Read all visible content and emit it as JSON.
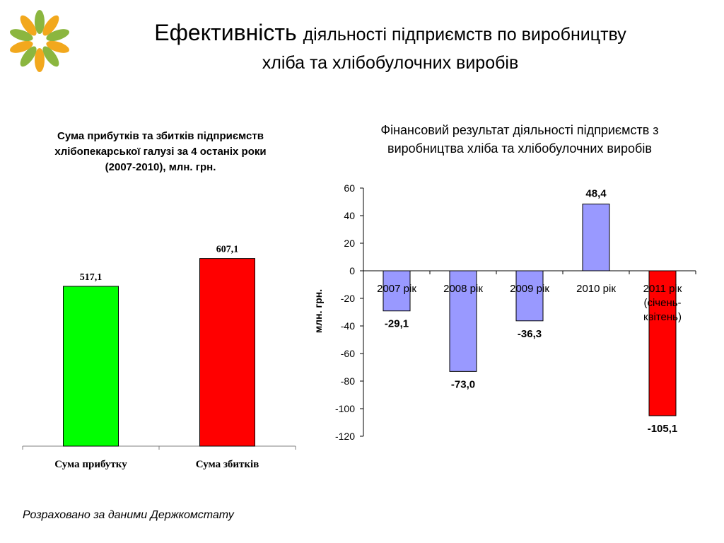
{
  "slide": {
    "title_big": "Ефективність",
    "title_rest": "діяльності підприємств по виробництву",
    "title_line2": "хліба та хлібобулочних виробів",
    "footnote": "Розраховано за даними Держкомстату",
    "logo_colors": [
      "#8bb63f",
      "#f2a81d"
    ]
  },
  "chart_data": [
    {
      "type": "bar",
      "title": "Сума прибутків та збитків підприємств хлібопекарської галузі за 4 останіх роки (2007-2010), млн. грн.",
      "categories": [
        "Сума прибутку",
        "Сума збитків"
      ],
      "values": [
        517.1,
        607.1
      ],
      "value_labels": [
        "517,1",
        "607,1"
      ],
      "colors": [
        "#00ff00",
        "#ff0000"
      ],
      "ylim": [
        0,
        700
      ],
      "grid": false,
      "legend": "none"
    },
    {
      "type": "bar",
      "title": "Фінансовий результат діяльності підприємств з виробництва хліба та хлібобулочних виробів",
      "ylabel": "млн. грн.",
      "categories": [
        "2007 рік",
        "2008 рік",
        "2009 рік",
        "2010 рік",
        "2011 рік (січень-квітень)"
      ],
      "category_lines": [
        [
          "2007 рік"
        ],
        [
          "2008 рік"
        ],
        [
          "2009 рік"
        ],
        [
          "2010 рік"
        ],
        [
          "2011 рік",
          "(січень-",
          "квітень)"
        ]
      ],
      "values": [
        -29.1,
        -73.0,
        -36.3,
        48.4,
        -105.1
      ],
      "value_labels": [
        "-29,1",
        "-73,0",
        "-36,3",
        "48,4",
        "-105,1"
      ],
      "colors": [
        "#9999ff",
        "#9999ff",
        "#9999ff",
        "#9999ff",
        "#ff0000"
      ],
      "ylim": [
        -120,
        60
      ],
      "yticks": [
        60,
        40,
        20,
        0,
        -20,
        -40,
        -60,
        -80,
        -100,
        -120
      ],
      "ytick_labels": [
        "60",
        "40",
        "20",
        "0",
        "-20",
        "-40",
        "-60",
        "-80",
        "-100",
        "-120"
      ],
      "grid": false,
      "legend": "none"
    }
  ]
}
